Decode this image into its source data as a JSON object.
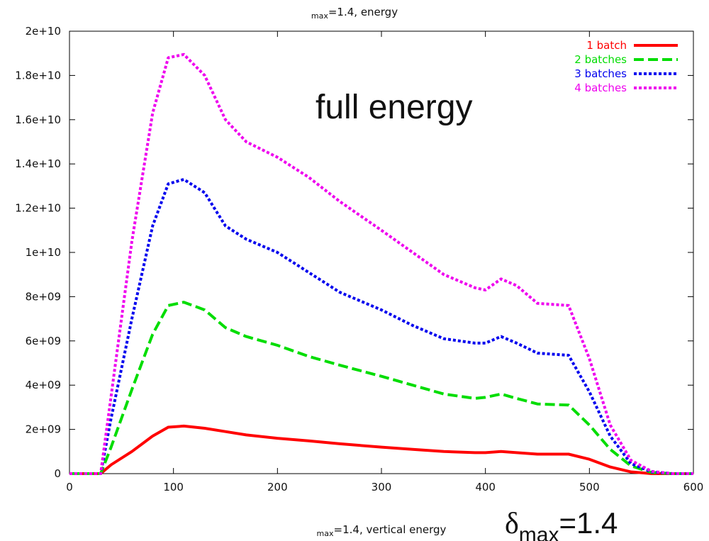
{
  "chart_data": {
    "type": "line",
    "title_sub": "max",
    "title_rest": "=1.4, energy",
    "xlabel_sub": "max",
    "xlabel_rest": "=1.4, vertical energy",
    "annotation": "full energy",
    "delta_symbol": "δ",
    "delta_sub": "max",
    "delta_rest": "=1.4",
    "xlim": [
      0,
      600
    ],
    "ylim": [
      0,
      20000000000
    ],
    "x_ticks": [
      0,
      100,
      200,
      300,
      400,
      500,
      600
    ],
    "x_tick_labels": [
      "0",
      "100",
      "200",
      "300",
      "400",
      "500",
      "600"
    ],
    "y_ticks": [
      0,
      2000000000,
      4000000000,
      6000000000,
      8000000000,
      10000000000,
      12000000000,
      14000000000,
      16000000000,
      18000000000,
      20000000000
    ],
    "y_tick_labels": [
      "0",
      "2e+09",
      "4e+09",
      "6e+09",
      "8e+09",
      "1e+10",
      "1.2e+10",
      "1.4e+10",
      "1.6e+10",
      "1.8e+10",
      "2e+10"
    ],
    "grid": false,
    "legend_position": "top-right",
    "x": [
      0,
      30,
      40,
      60,
      80,
      95,
      110,
      130,
      150,
      170,
      200,
      230,
      260,
      300,
      330,
      360,
      390,
      400,
      415,
      430,
      450,
      480,
      500,
      520,
      540,
      560,
      580,
      600
    ],
    "series": [
      {
        "name": "1 batch",
        "color": "#ff0000",
        "style": "solid",
        "values": [
          0,
          0,
          400000000.0,
          1000000000.0,
          1700000000.0,
          2100000000.0,
          2150000000.0,
          2050000000.0,
          1900000000.0,
          1750000000.0,
          1600000000.0,
          1480000000.0,
          1350000000.0,
          1200000000.0,
          1100000000.0,
          1000000000.0,
          950000000.0,
          950000000.0,
          1000000000.0,
          950000000.0,
          880000000.0,
          880000000.0,
          650000000.0,
          300000000.0,
          80000000.0,
          0,
          0,
          0
        ]
      },
      {
        "name": "2 batches",
        "color": "#00dd00",
        "style": "dashed",
        "values": [
          0,
          0,
          1200000000.0,
          3800000000.0,
          6300000000.0,
          7600000000.0,
          7750000000.0,
          7400000000.0,
          6600000000.0,
          6200000000.0,
          5800000000.0,
          5300000000.0,
          4900000000.0,
          4400000000.0,
          4000000000.0,
          3600000000.0,
          3400000000.0,
          3450000000.0,
          3600000000.0,
          3400000000.0,
          3150000000.0,
          3100000000.0,
          2200000000.0,
          1100000000.0,
          350000000.0,
          50000000.0,
          0,
          0
        ]
      },
      {
        "name": "3 batches",
        "color": "#0000ee",
        "style": "dotted",
        "values": [
          0,
          0,
          2500000000.0,
          7000000000.0,
          11200000000.0,
          13100000000.0,
          13300000000.0,
          12700000000.0,
          11200000000.0,
          10600000000.0,
          10000000000.0,
          9100000000.0,
          8200000000.0,
          7400000000.0,
          6700000000.0,
          6100000000.0,
          5900000000.0,
          5900000000.0,
          6200000000.0,
          5900000000.0,
          5450000000.0,
          5350000000.0,
          3700000000.0,
          1700000000.0,
          450000000.0,
          80000000.0,
          0,
          0
        ]
      },
      {
        "name": "4 batches",
        "color": "#ee00ee",
        "style": "dotted",
        "values": [
          0,
          0,
          3500000000.0,
          10500000000.0,
          16300000000.0,
          18800000000.0,
          18950000000.0,
          18000000000.0,
          16000000000.0,
          15000000000.0,
          14300000000.0,
          13400000000.0,
          12300000000.0,
          11000000000.0,
          10000000000.0,
          9000000000.0,
          8400000000.0,
          8300000000.0,
          8800000000.0,
          8500000000.0,
          7700000000.0,
          7600000000.0,
          5200000000.0,
          2200000000.0,
          600000000.0,
          100000000.0,
          0,
          0
        ]
      }
    ]
  }
}
